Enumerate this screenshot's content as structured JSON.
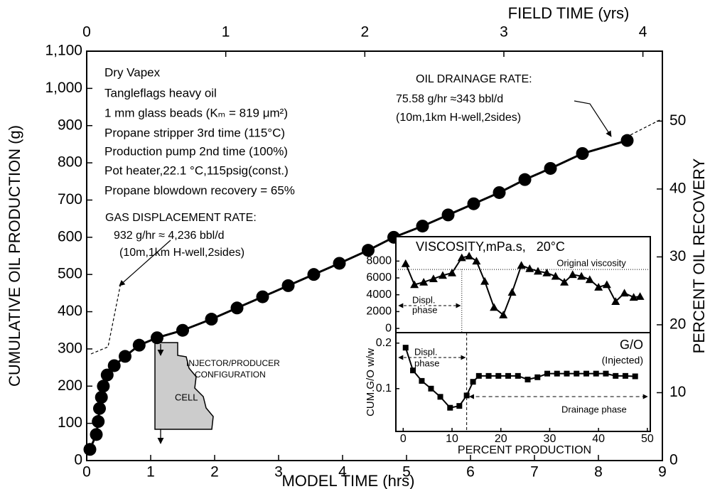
{
  "chart_data": [
    {
      "type": "line",
      "xlabel": "MODEL TIME (hrs)",
      "ylabel": "CUMULATIVE OIL PRODUCTION (g)",
      "x2label": "FIELD TIME (yrs)",
      "y2label": "PERCENT OIL RECOVERY",
      "xlim": [
        0,
        9
      ],
      "xticks": [
        0,
        1,
        2,
        3,
        4,
        5,
        6,
        7,
        8,
        9
      ],
      "ylim": [
        0,
        1100
      ],
      "yticks": [
        0,
        100,
        200,
        300,
        400,
        500,
        600,
        700,
        800,
        900,
        {
          "value": 1000,
          "label": "1,000"
        },
        {
          "value": 1100,
          "label": "1,100"
        }
      ],
      "x2lim": [
        0,
        4.14
      ],
      "x2ticks": [
        0,
        1,
        2,
        3,
        4
      ],
      "y2lim": [
        0,
        60.3
      ],
      "y2ticks": [
        0,
        10,
        20,
        30,
        40,
        50
      ],
      "annotations": [
        "Dry Vapex",
        "Tangleflags heavy oil",
        "1 mm glass beads (Kₘ = 819 μm²)",
        "Propane stripper 3rd time (115°C)",
        "Production pump 2nd time (100%)",
        "Pot heater,22.1 °C,115psig(const.)",
        "Propane blowdown recovery = 65%",
        "GAS DISPLACEMENT RATE:",
        "932 g/hr ≈ 4,236 bbl/d",
        "(10m,1km H-well,2sides)",
        "OIL DRAINAGE RATE:",
        "75.58 g/hr ≈343 bbl/d",
        "(10m,1km H-well,2sides)",
        "INJECTOR/PRODUCER",
        "CONFIGURATION",
        "CELL"
      ],
      "x": [
        0.05,
        0.15,
        0.18,
        0.2,
        0.23,
        0.26,
        0.32,
        0.43,
        0.6,
        0.82,
        1.1,
        1.5,
        1.95,
        2.35,
        2.75,
        3.15,
        3.55,
        3.95,
        4.4,
        4.8,
        5.25,
        5.65,
        6.05,
        6.45,
        6.85,
        7.25,
        7.75,
        8.45
      ],
      "series": [
        {
          "color": "#000000",
          "marker": "circle",
          "values": [
            30,
            70,
            105,
            140,
            170,
            200,
            230,
            255,
            280,
            310,
            330,
            350,
            380,
            410,
            440,
            470,
            500,
            530,
            565,
            600,
            630,
            660,
            690,
            720,
            755,
            785,
            825,
            860
          ]
        }
      ]
    },
    {
      "type": "line",
      "title": "VISCOSITY,mPa.s,   20°C",
      "xlim": [
        -1.5,
        50.6
      ],
      "ylim": [
        -500,
        10900
      ],
      "yticks": [
        0,
        2000,
        4000,
        6000,
        8000
      ],
      "reference_line": {
        "value": 7000,
        "label": "Original viscosity"
      },
      "phase_boundary": 12,
      "phase_labels": [
        "Displ.",
        "phase"
      ],
      "x": [
        0.5,
        2.3,
        4.2,
        6.2,
        8.1,
        10,
        12,
        13.5,
        15,
        16.7,
        18.6,
        20.5,
        22.3,
        24.2,
        25.9,
        27.6,
        29.4,
        31.2,
        33,
        34.7,
        36.5,
        38.2,
        40,
        41.7,
        43.5,
        45.3,
        47.2,
        48.5
      ],
      "series": [
        {
          "color": "#000000",
          "marker": "triangle",
          "values": [
            7700,
            5200,
            5500,
            5900,
            6300,
            6600,
            8400,
            8600,
            8000,
            5600,
            2500,
            1600,
            4300,
            7500,
            7100,
            6800,
            6600,
            6200,
            5500,
            6400,
            6200,
            5800,
            4900,
            5200,
            3200,
            4200,
            3700,
            3800
          ]
        }
      ]
    },
    {
      "type": "line",
      "title": "G/O",
      "subtitle": "(Injected)",
      "xlabel": "PERCENT PRODUCTION",
      "ylabel": "CUM.G/O w/w",
      "xlim": [
        -1.5,
        50.6
      ],
      "xticks": [
        0,
        10,
        20,
        30,
        40,
        50
      ],
      "ylim": [
        0.006,
        0.223
      ],
      "yticks": [
        0.1,
        0.2
      ],
      "phase_boundary": 13,
      "phase_labels": [
        "Displ.",
        "phase",
        "Drainage phase"
      ],
      "x": [
        0.5,
        2,
        3.8,
        5.7,
        7.6,
        9.6,
        11.5,
        13,
        14.3,
        15.5,
        17.5,
        19.5,
        21.5,
        23.5,
        25.5,
        27.5,
        29.5,
        31.5,
        33.5,
        35.5,
        37.5,
        39.5,
        41.5,
        43.5,
        45.5,
        47.5
      ],
      "series": [
        {
          "color": "#000000",
          "marker": "square",
          "values": [
            0.19,
            0.14,
            0.117,
            0.1,
            0.082,
            0.058,
            0.062,
            0.085,
            0.115,
            0.128,
            0.128,
            0.128,
            0.128,
            0.128,
            0.12,
            0.125,
            0.133,
            0.133,
            0.133,
            0.133,
            0.133,
            0.133,
            0.133,
            0.128,
            0.128,
            0.127
          ]
        }
      ]
    }
  ]
}
